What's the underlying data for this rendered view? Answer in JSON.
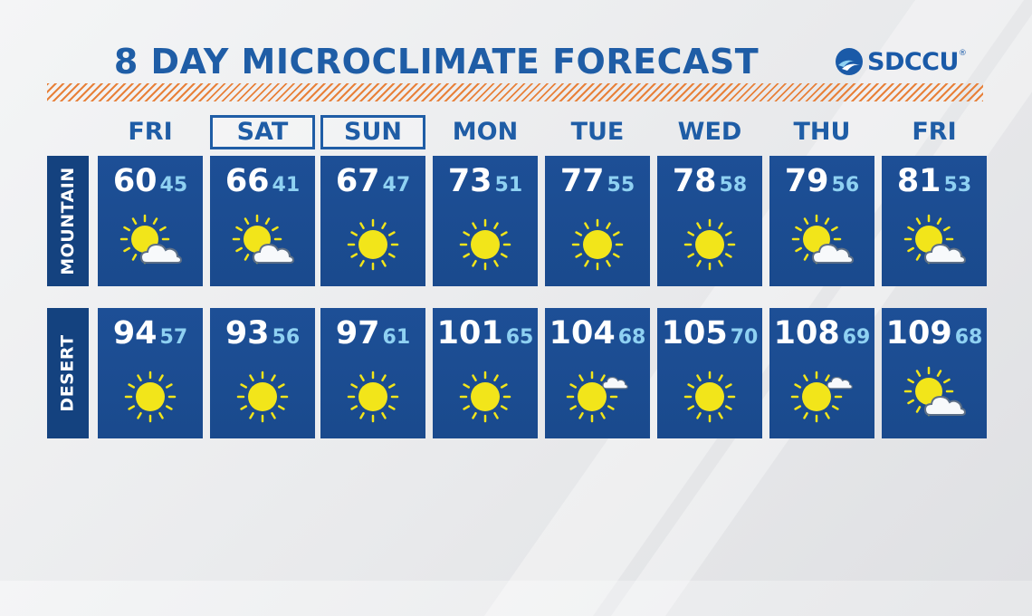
{
  "title": "8 DAY MICROCLIMATE FORECAST",
  "logo": {
    "text": "SDCCU",
    "mark": "®"
  },
  "days": [
    {
      "label": "FRI",
      "highlight": false
    },
    {
      "label": "SAT",
      "highlight": true
    },
    {
      "label": "SUN",
      "highlight": true
    },
    {
      "label": "MON",
      "highlight": false
    },
    {
      "label": "TUE",
      "highlight": false
    },
    {
      "label": "WED",
      "highlight": false
    },
    {
      "label": "THU",
      "highlight": false
    },
    {
      "label": "FRI",
      "highlight": false
    }
  ],
  "rows": [
    {
      "label": "MOUNTAIN",
      "cells": [
        {
          "high": "60",
          "low": "45",
          "icon": "partly-cloudy-icon"
        },
        {
          "high": "66",
          "low": "41",
          "icon": "partly-cloudy-icon"
        },
        {
          "high": "67",
          "low": "47",
          "icon": "sunny-icon"
        },
        {
          "high": "73",
          "low": "51",
          "icon": "sunny-icon"
        },
        {
          "high": "77",
          "low": "55",
          "icon": "sunny-icon"
        },
        {
          "high": "78",
          "low": "58",
          "icon": "sunny-icon"
        },
        {
          "high": "79",
          "low": "56",
          "icon": "partly-cloudy-icon"
        },
        {
          "high": "81",
          "low": "53",
          "icon": "partly-cloudy-icon"
        }
      ]
    },
    {
      "label": "DESERT",
      "cells": [
        {
          "high": "94",
          "low": "57",
          "icon": "sunny-icon"
        },
        {
          "high": "93",
          "low": "56",
          "icon": "sunny-icon"
        },
        {
          "high": "97",
          "low": "61",
          "icon": "sunny-icon"
        },
        {
          "high": "101",
          "low": "65",
          "icon": "sunny-icon"
        },
        {
          "high": "104",
          "low": "68",
          "icon": "mostly-sunny-icon"
        },
        {
          "high": "105",
          "low": "70",
          "icon": "sunny-icon"
        },
        {
          "high": "108",
          "low": "69",
          "icon": "mostly-sunny-icon"
        },
        {
          "high": "109",
          "low": "68",
          "icon": "partly-cloudy-icon"
        }
      ]
    }
  ],
  "colors": {
    "title": "#1f5da6",
    "cell": "#1c4d92",
    "label_bg": "#14427f",
    "low_temp": "#8fd1f2",
    "sun": "#f2e51a",
    "stripe": "#e8813a"
  }
}
